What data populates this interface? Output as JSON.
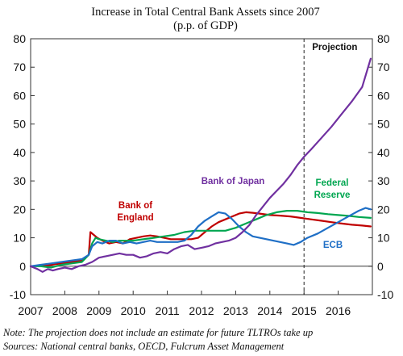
{
  "chart_data": {
    "type": "line",
    "title_line1": "Increase  in Total Central Bank Assets since  2007",
    "title_line2": "(p.p. of GDP)",
    "xlabel": "",
    "ylabel": "",
    "xlim": [
      2007.0,
      2017.0
    ],
    "ylim": [
      -10,
      80
    ],
    "y_ticks": [
      -10,
      0,
      10,
      20,
      30,
      40,
      50,
      60,
      70,
      80
    ],
    "x_ticks": [
      {
        "label": "2007",
        "value": 2007
      },
      {
        "label": "2008",
        "value": 2008
      },
      {
        "label": "2009",
        "value": 2009
      },
      {
        "label": "2010",
        "value": 2010
      },
      {
        "label": "2011",
        "value": 2011
      },
      {
        "label": "2012",
        "value": 2012
      },
      {
        "label": "2013",
        "value": 2013
      },
      {
        "label": "2014",
        "value": 2014
      },
      {
        "label": "2015",
        "value": 2015
      },
      {
        "label": "2016",
        "value": 2016
      }
    ],
    "grid": false,
    "projection": {
      "label": "Projection",
      "start": 2015.0
    },
    "series": [
      {
        "name": "Bank of England",
        "label_lines": [
          "Bank of",
          "England"
        ],
        "color": "#c00000",
        "points": [
          [
            2007.0,
            0
          ],
          [
            2007.3,
            0.3
          ],
          [
            2007.6,
            0.5
          ],
          [
            2007.9,
            1
          ],
          [
            2008.2,
            1.5
          ],
          [
            2008.5,
            2
          ],
          [
            2008.7,
            4
          ],
          [
            2008.75,
            12
          ],
          [
            2008.85,
            11
          ],
          [
            2008.95,
            10
          ],
          [
            2009.1,
            9
          ],
          [
            2009.3,
            8
          ],
          [
            2009.5,
            8.5
          ],
          [
            2009.7,
            8
          ],
          [
            2009.9,
            9.5
          ],
          [
            2010.1,
            10
          ],
          [
            2010.3,
            10.5
          ],
          [
            2010.5,
            10.8
          ],
          [
            2010.7,
            10.5
          ],
          [
            2010.9,
            10
          ],
          [
            2011.1,
            9.5
          ],
          [
            2011.3,
            9.5
          ],
          [
            2011.5,
            9.5
          ],
          [
            2011.7,
            9.5
          ],
          [
            2011.9,
            10
          ],
          [
            2012.1,
            12
          ],
          [
            2012.3,
            14
          ],
          [
            2012.5,
            15.5
          ],
          [
            2012.7,
            16.5
          ],
          [
            2012.9,
            17.5
          ],
          [
            2013.1,
            18.5
          ],
          [
            2013.3,
            19
          ],
          [
            2013.5,
            18.8
          ],
          [
            2013.7,
            18.5
          ],
          [
            2014.0,
            18
          ],
          [
            2014.3,
            17.8
          ],
          [
            2014.6,
            17.5
          ],
          [
            2014.9,
            17
          ],
          [
            2015.2,
            16.5
          ],
          [
            2015.5,
            16
          ],
          [
            2015.8,
            15.5
          ],
          [
            2016.1,
            15
          ],
          [
            2016.4,
            14.6
          ],
          [
            2016.7,
            14.3
          ],
          [
            2016.95,
            14
          ]
        ]
      },
      {
        "name": "Federal Reserve",
        "label_lines": [
          "Federal",
          "Reserve"
        ],
        "color": "#00a650",
        "points": [
          [
            2007.0,
            0
          ],
          [
            2007.3,
            0
          ],
          [
            2007.6,
            -0.5
          ],
          [
            2007.9,
            0.5
          ],
          [
            2008.2,
            1
          ],
          [
            2008.5,
            1.5
          ],
          [
            2008.7,
            4
          ],
          [
            2008.8,
            8
          ],
          [
            2008.9,
            10
          ],
          [
            2009.0,
            9.5
          ],
          [
            2009.2,
            9
          ],
          [
            2009.4,
            8.5
          ],
          [
            2009.6,
            9
          ],
          [
            2009.8,
            9
          ],
          [
            2010.0,
            9
          ],
          [
            2010.3,
            9.5
          ],
          [
            2010.6,
            10
          ],
          [
            2010.9,
            10.5
          ],
          [
            2011.2,
            11
          ],
          [
            2011.5,
            12
          ],
          [
            2011.8,
            12.5
          ],
          [
            2012.1,
            12.5
          ],
          [
            2012.4,
            12.5
          ],
          [
            2012.7,
            12.5
          ],
          [
            2013.0,
            13.5
          ],
          [
            2013.3,
            15
          ],
          [
            2013.6,
            16.5
          ],
          [
            2013.9,
            18
          ],
          [
            2014.2,
            19
          ],
          [
            2014.5,
            19.5
          ],
          [
            2014.8,
            19.5
          ],
          [
            2015.1,
            19
          ],
          [
            2015.4,
            18.7
          ],
          [
            2015.7,
            18.3
          ],
          [
            2016.0,
            18
          ],
          [
            2016.3,
            17.7
          ],
          [
            2016.6,
            17.3
          ],
          [
            2016.95,
            17
          ]
        ]
      },
      {
        "name": "ECB",
        "label_lines": [
          "ECB"
        ],
        "color": "#1f6fc6",
        "points": [
          [
            2007.0,
            0
          ],
          [
            2007.3,
            0.5
          ],
          [
            2007.6,
            1
          ],
          [
            2007.9,
            1.5
          ],
          [
            2008.2,
            2
          ],
          [
            2008.5,
            2.5
          ],
          [
            2008.7,
            4
          ],
          [
            2008.8,
            7
          ],
          [
            2008.95,
            8.5
          ],
          [
            2009.1,
            8
          ],
          [
            2009.3,
            9
          ],
          [
            2009.5,
            9
          ],
          [
            2009.7,
            8
          ],
          [
            2009.9,
            8.5
          ],
          [
            2010.1,
            8
          ],
          [
            2010.3,
            8.5
          ],
          [
            2010.5,
            9
          ],
          [
            2010.7,
            8.5
          ],
          [
            2010.9,
            8.5
          ],
          [
            2011.1,
            8.5
          ],
          [
            2011.3,
            8.5
          ],
          [
            2011.5,
            9
          ],
          [
            2011.7,
            11
          ],
          [
            2011.9,
            14
          ],
          [
            2012.1,
            16
          ],
          [
            2012.3,
            17.5
          ],
          [
            2012.5,
            19
          ],
          [
            2012.7,
            18.5
          ],
          [
            2012.9,
            16.5
          ],
          [
            2013.1,
            14
          ],
          [
            2013.3,
            12
          ],
          [
            2013.5,
            10.5
          ],
          [
            2013.7,
            10
          ],
          [
            2013.9,
            9.5
          ],
          [
            2014.1,
            9
          ],
          [
            2014.3,
            8.5
          ],
          [
            2014.5,
            8
          ],
          [
            2014.7,
            7.5
          ],
          [
            2014.9,
            8.5
          ],
          [
            2015.1,
            10
          ],
          [
            2015.4,
            11.5
          ],
          [
            2015.7,
            13.5
          ],
          [
            2016.0,
            15.5
          ],
          [
            2016.3,
            17.5
          ],
          [
            2016.6,
            19.5
          ],
          [
            2016.8,
            20.5
          ],
          [
            2016.95,
            20
          ]
        ]
      },
      {
        "name": "Bank of Japan",
        "label_lines": [
          "Bank of Japan"
        ],
        "color": "#7030a0",
        "points": [
          [
            2007.0,
            0
          ],
          [
            2007.2,
            -1
          ],
          [
            2007.35,
            -2
          ],
          [
            2007.5,
            -1
          ],
          [
            2007.65,
            -1.5
          ],
          [
            2007.8,
            -1
          ],
          [
            2008.0,
            -0.5
          ],
          [
            2008.2,
            -1
          ],
          [
            2008.4,
            0
          ],
          [
            2008.6,
            0.5
          ],
          [
            2008.8,
            1.5
          ],
          [
            2009.0,
            3
          ],
          [
            2009.2,
            3.5
          ],
          [
            2009.4,
            4
          ],
          [
            2009.6,
            4.5
          ],
          [
            2009.8,
            4
          ],
          [
            2010.0,
            4
          ],
          [
            2010.2,
            3
          ],
          [
            2010.4,
            3.5
          ],
          [
            2010.6,
            4.5
          ],
          [
            2010.8,
            5
          ],
          [
            2011.0,
            4.5
          ],
          [
            2011.2,
            6
          ],
          [
            2011.4,
            7
          ],
          [
            2011.6,
            7.5
          ],
          [
            2011.8,
            6
          ],
          [
            2012.0,
            6.5
          ],
          [
            2012.2,
            7
          ],
          [
            2012.4,
            8
          ],
          [
            2012.6,
            8.5
          ],
          [
            2012.8,
            9
          ],
          [
            2013.0,
            10
          ],
          [
            2013.2,
            12
          ],
          [
            2013.4,
            14.5
          ],
          [
            2013.6,
            18
          ],
          [
            2013.8,
            21
          ],
          [
            2014.0,
            24
          ],
          [
            2014.2,
            26.5
          ],
          [
            2014.4,
            29
          ],
          [
            2014.6,
            32
          ],
          [
            2014.8,
            35.5
          ],
          [
            2015.0,
            38.5
          ],
          [
            2015.2,
            41
          ],
          [
            2015.5,
            45
          ],
          [
            2015.8,
            49
          ],
          [
            2016.1,
            53.5
          ],
          [
            2016.4,
            58
          ],
          [
            2016.7,
            63
          ],
          [
            2016.95,
            73
          ]
        ]
      }
    ],
    "footnotes": [
      "Note: The projection does not include  an estimate for future TLTROs take up",
      "Sources: National central banks, OECD,  Fulcrum Asset Management"
    ]
  }
}
